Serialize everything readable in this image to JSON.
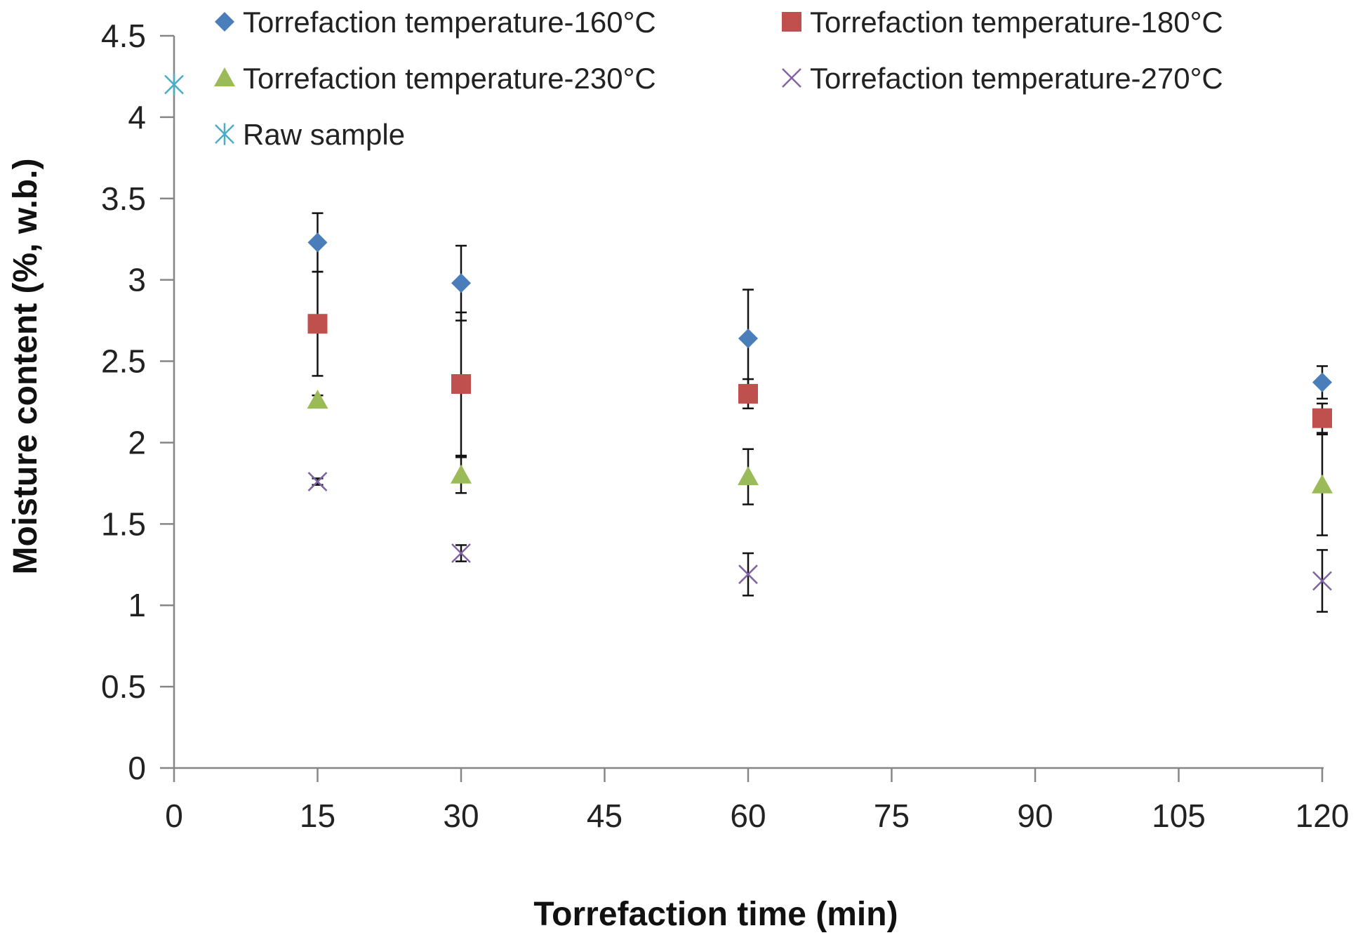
{
  "chart_data": {
    "type": "scatter",
    "title": "",
    "xlabel": "Torrefaction time (min)",
    "ylabel": "Moisture content (%, w.b.)",
    "xlim": [
      0,
      120
    ],
    "ylim": [
      0,
      4.5
    ],
    "xticks": [
      "0",
      "15",
      "30",
      "45",
      "60",
      "75",
      "90",
      "105",
      "120"
    ],
    "yticks": [
      "0",
      "0.5",
      "1",
      "1.5",
      "2",
      "2.5",
      "3",
      "3.5",
      "4",
      "4.5"
    ],
    "grid": false,
    "legend_position": "top",
    "series": [
      {
        "name": "Torrefaction temperature-160°C",
        "marker": "diamond",
        "color": "#4a7ebb",
        "points": [
          {
            "x": 15,
            "y": 3.23,
            "err": 0.18
          },
          {
            "x": 30,
            "y": 2.98,
            "err": 0.23
          },
          {
            "x": 60,
            "y": 2.64,
            "err": 0.3
          },
          {
            "x": 120,
            "y": 2.37,
            "err": 0.1
          }
        ]
      },
      {
        "name": "Torrefaction temperature-180°C",
        "marker": "square",
        "color": "#c0504d",
        "points": [
          {
            "x": 15,
            "y": 2.73,
            "err": 0.32
          },
          {
            "x": 30,
            "y": 2.36,
            "err": 0.44
          },
          {
            "x": 60,
            "y": 2.3,
            "err": 0.09
          },
          {
            "x": 120,
            "y": 2.15,
            "err": 0.09
          }
        ]
      },
      {
        "name": "Torrefaction temperature-230°C",
        "marker": "triangle",
        "color": "#9bbb59",
        "points": [
          {
            "x": 15,
            "y": 2.26,
            "err": 0.03
          },
          {
            "x": 30,
            "y": 1.8,
            "err": 0.11
          },
          {
            "x": 60,
            "y": 1.79,
            "err": 0.17
          },
          {
            "x": 120,
            "y": 1.74,
            "err": 0.31
          }
        ]
      },
      {
        "name": "Torrefaction temperature-270°C",
        "marker": "x",
        "color": "#8064a2",
        "points": [
          {
            "x": 15,
            "y": 1.76,
            "err": 0.02
          },
          {
            "x": 30,
            "y": 1.32,
            "err": 0.05
          },
          {
            "x": 60,
            "y": 1.19,
            "err": 0.13
          },
          {
            "x": 120,
            "y": 1.15,
            "err": 0.19
          }
        ]
      },
      {
        "name": "Raw sample",
        "marker": "star",
        "color": "#4bacc6",
        "points": [
          {
            "x": 0,
            "y": 4.2,
            "err": 0
          }
        ]
      }
    ]
  }
}
